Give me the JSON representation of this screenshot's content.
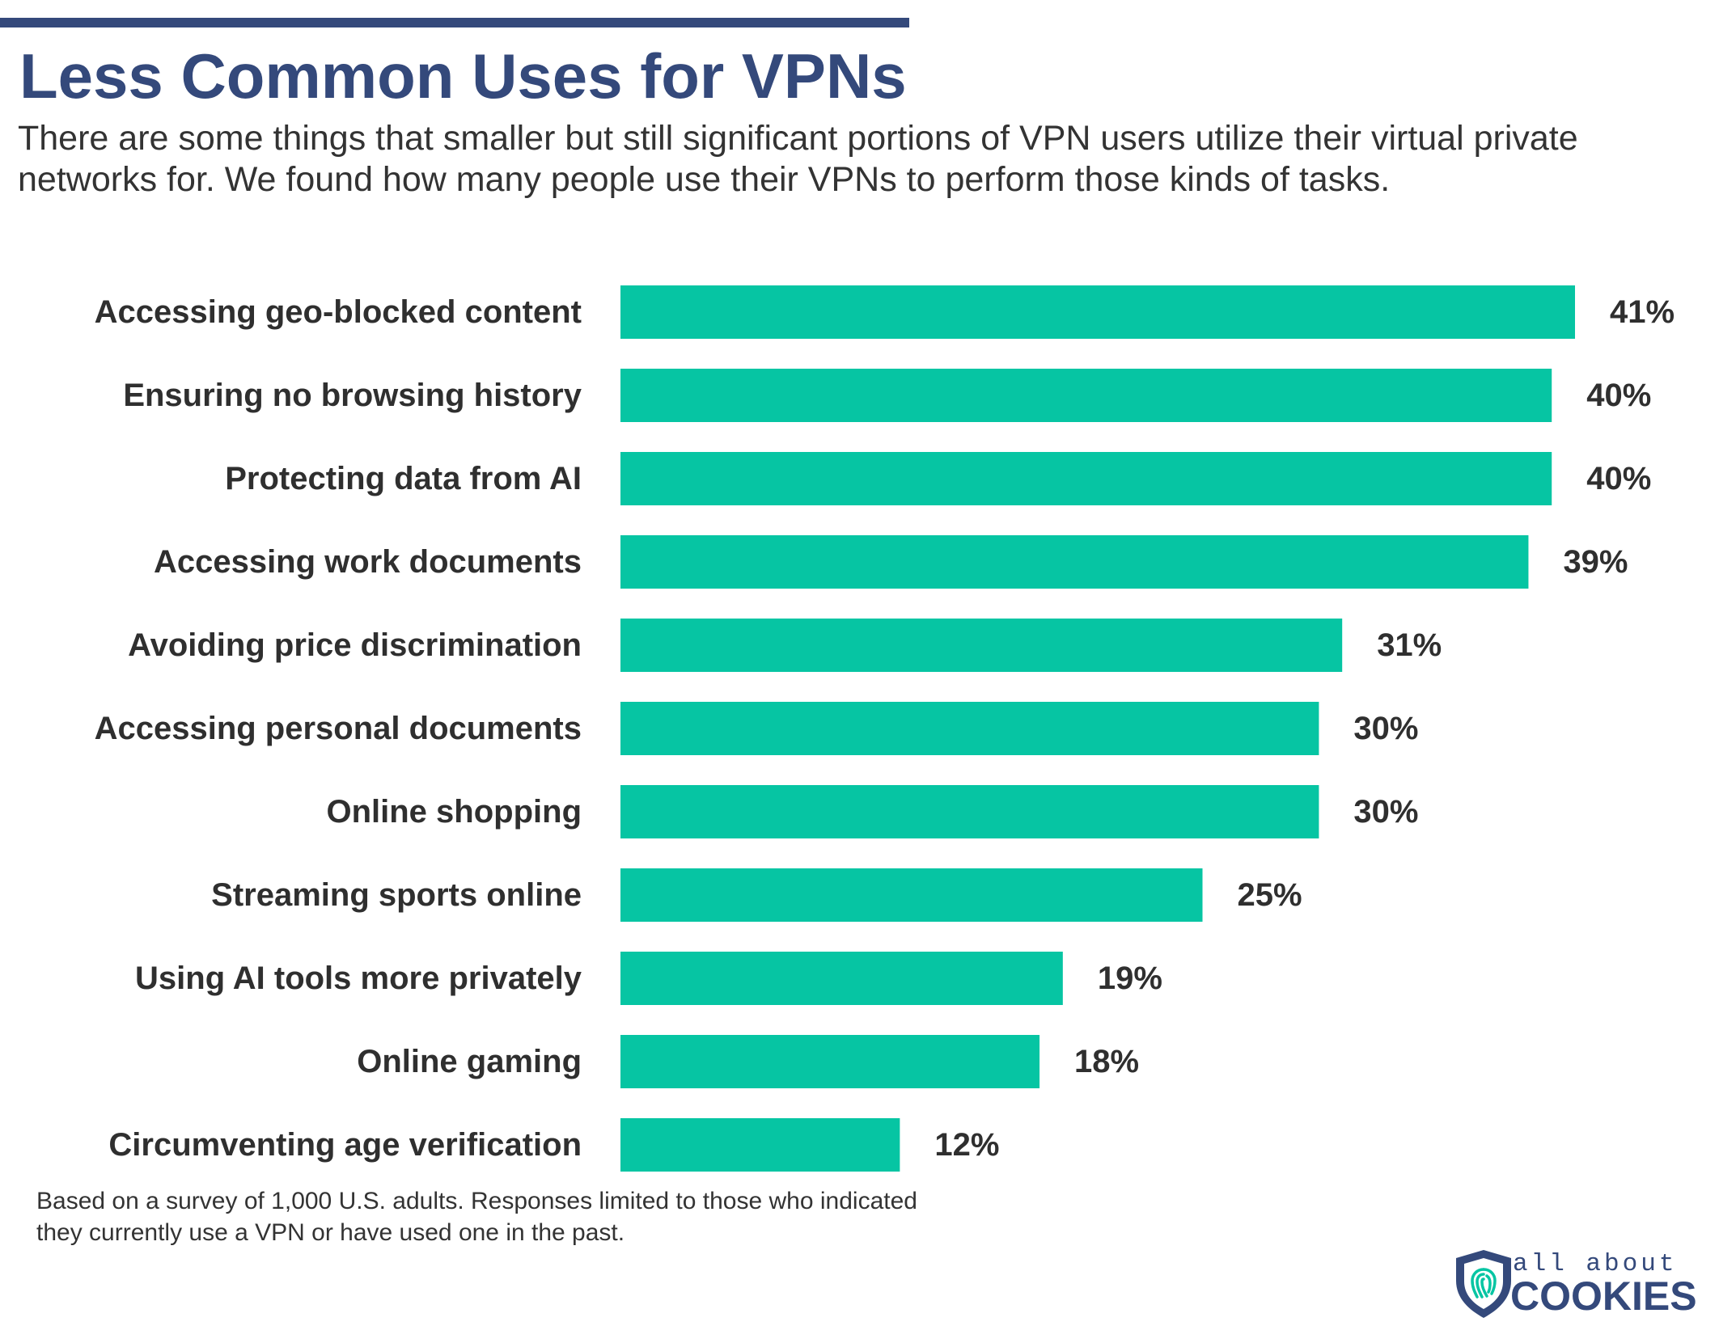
{
  "header": {
    "title": "Less Common Uses for VPNs",
    "subtitle": "There are some things that smaller but still significant portions of VPN users utilize their virtual private networks for. We found how many people use their VPNs to perform those kinds of tasks."
  },
  "chart_data": {
    "type": "bar",
    "orientation": "horizontal",
    "categories": [
      "Accessing geo-blocked content",
      "Ensuring no browsing history",
      "Protecting data from AI",
      "Accessing work documents",
      "Avoiding price discrimination",
      "Accessing personal documents",
      "Online shopping",
      "Streaming sports online",
      "Using AI tools more privately",
      "Online gaming",
      "Circumventing age verification"
    ],
    "values": [
      41,
      40,
      40,
      39,
      31,
      30,
      30,
      25,
      19,
      18,
      12
    ],
    "value_labels": [
      "41%",
      "40%",
      "40%",
      "39%",
      "31%",
      "30%",
      "30%",
      "25%",
      "19%",
      "18%",
      "12%"
    ],
    "title": "Less Common Uses for VPNs",
    "xlabel": "",
    "ylabel": "",
    "xlim": [
      0,
      41
    ],
    "grid": false,
    "legend": "none",
    "bar_color": "#06c5a3"
  },
  "footnote": "Based on a survey of 1,000 U.S. adults. Responses limited to those who indicated they currently use a VPN or have used one in the past.",
  "logo": {
    "small_text": "all about",
    "big_text": "COOKIES",
    "icon": "shield-fingerprint-icon"
  },
  "colors": {
    "brand_navy": "#34497b",
    "bar": "#06c5a3",
    "text": "#333333"
  }
}
